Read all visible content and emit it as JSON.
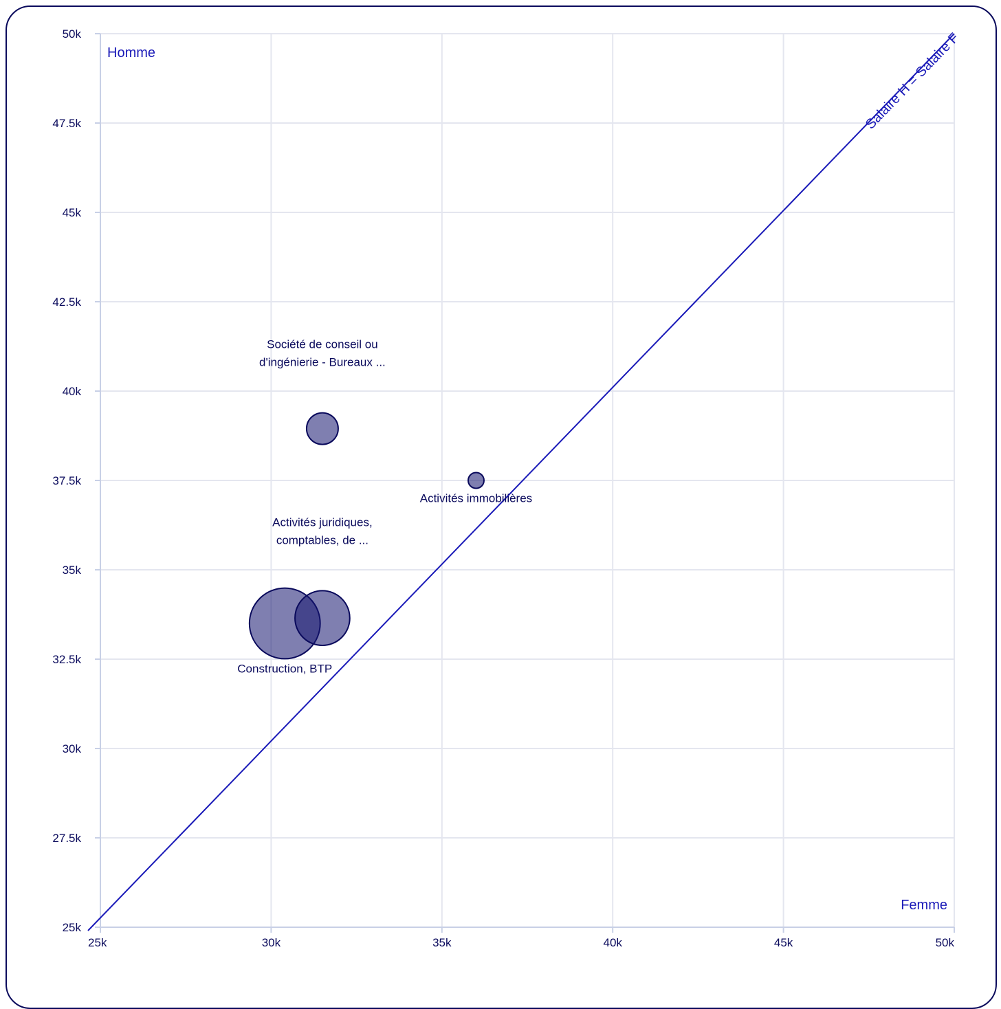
{
  "chart_data": {
    "type": "scatter",
    "subtype": "bubble",
    "xlabel": "Femme",
    "ylabel": "Homme",
    "xlim": [
      25000,
      50000
    ],
    "ylim": [
      25000,
      50000
    ],
    "x_ticks": [
      "25k",
      "30k",
      "35k",
      "40k",
      "45k",
      "50k"
    ],
    "y_ticks": [
      "25k",
      "27.5k",
      "30k",
      "32.5k",
      "35k",
      "37.5k",
      "40k",
      "42.5k",
      "45k",
      "47.5k",
      "50k"
    ],
    "x_tick_values": [
      25000,
      30000,
      35000,
      40000,
      45000,
      50000
    ],
    "y_tick_values": [
      25000,
      27500,
      30000,
      32500,
      35000,
      37500,
      40000,
      42500,
      45000,
      47500,
      50000
    ],
    "grid": true,
    "reference_line": {
      "label": "Salaire H = Salaire F",
      "from": [
        25000,
        25000
      ],
      "to": [
        50000,
        50000
      ]
    },
    "points": [
      {
        "label_lines": [
          "Construction, BTP"
        ],
        "x": 30400,
        "y": 33500,
        "size": 5,
        "label_pos": "below"
      },
      {
        "label_lines": [
          "Activités juridiques,",
          "comptables, de ..."
        ],
        "x": 31500,
        "y": 33650,
        "size": 3,
        "label_pos": "above"
      },
      {
        "label_lines": [
          "Société de conseil ou",
          "d'ingénierie - Bureaux ..."
        ],
        "x": 31500,
        "y": 38950,
        "size": 1,
        "label_pos": "above"
      },
      {
        "label_lines": [
          "Activités immobilières"
        ],
        "x": 36000,
        "y": 37500,
        "size": 0.25,
        "label_pos": "below"
      }
    ],
    "colors": {
      "bubble_fill": "#161670",
      "bubble_stroke": "#0a0a5c",
      "line": "#1a1ab8",
      "grid": "#e4e6ef",
      "axis": "#c8d0e6"
    }
  }
}
